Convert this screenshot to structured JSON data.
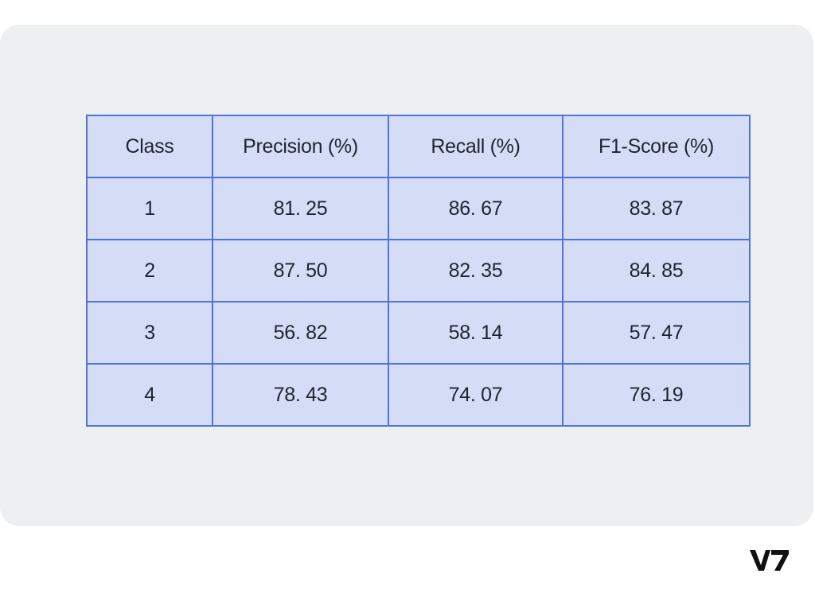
{
  "table": {
    "headers": [
      "Class",
      "Precision (%)",
      "Recall (%)",
      "F1-Score (%)"
    ],
    "rows": [
      [
        "1",
        "81. 25",
        "86. 67",
        "83. 87"
      ],
      [
        "2",
        "87. 50",
        "82. 35",
        "84. 85"
      ],
      [
        "3",
        "56. 82",
        "58. 14",
        "57. 47"
      ],
      [
        "4",
        "78. 43",
        "74. 07",
        "76. 19"
      ]
    ]
  },
  "logo": {
    "text": "V7",
    "icon": "v7-logo-icon",
    "color": "#111111"
  },
  "colors": {
    "card_background": "#eeeff1",
    "cell_fill": "#d4dcf6",
    "cell_border": "#4f74d6",
    "text": "#1f2430"
  }
}
